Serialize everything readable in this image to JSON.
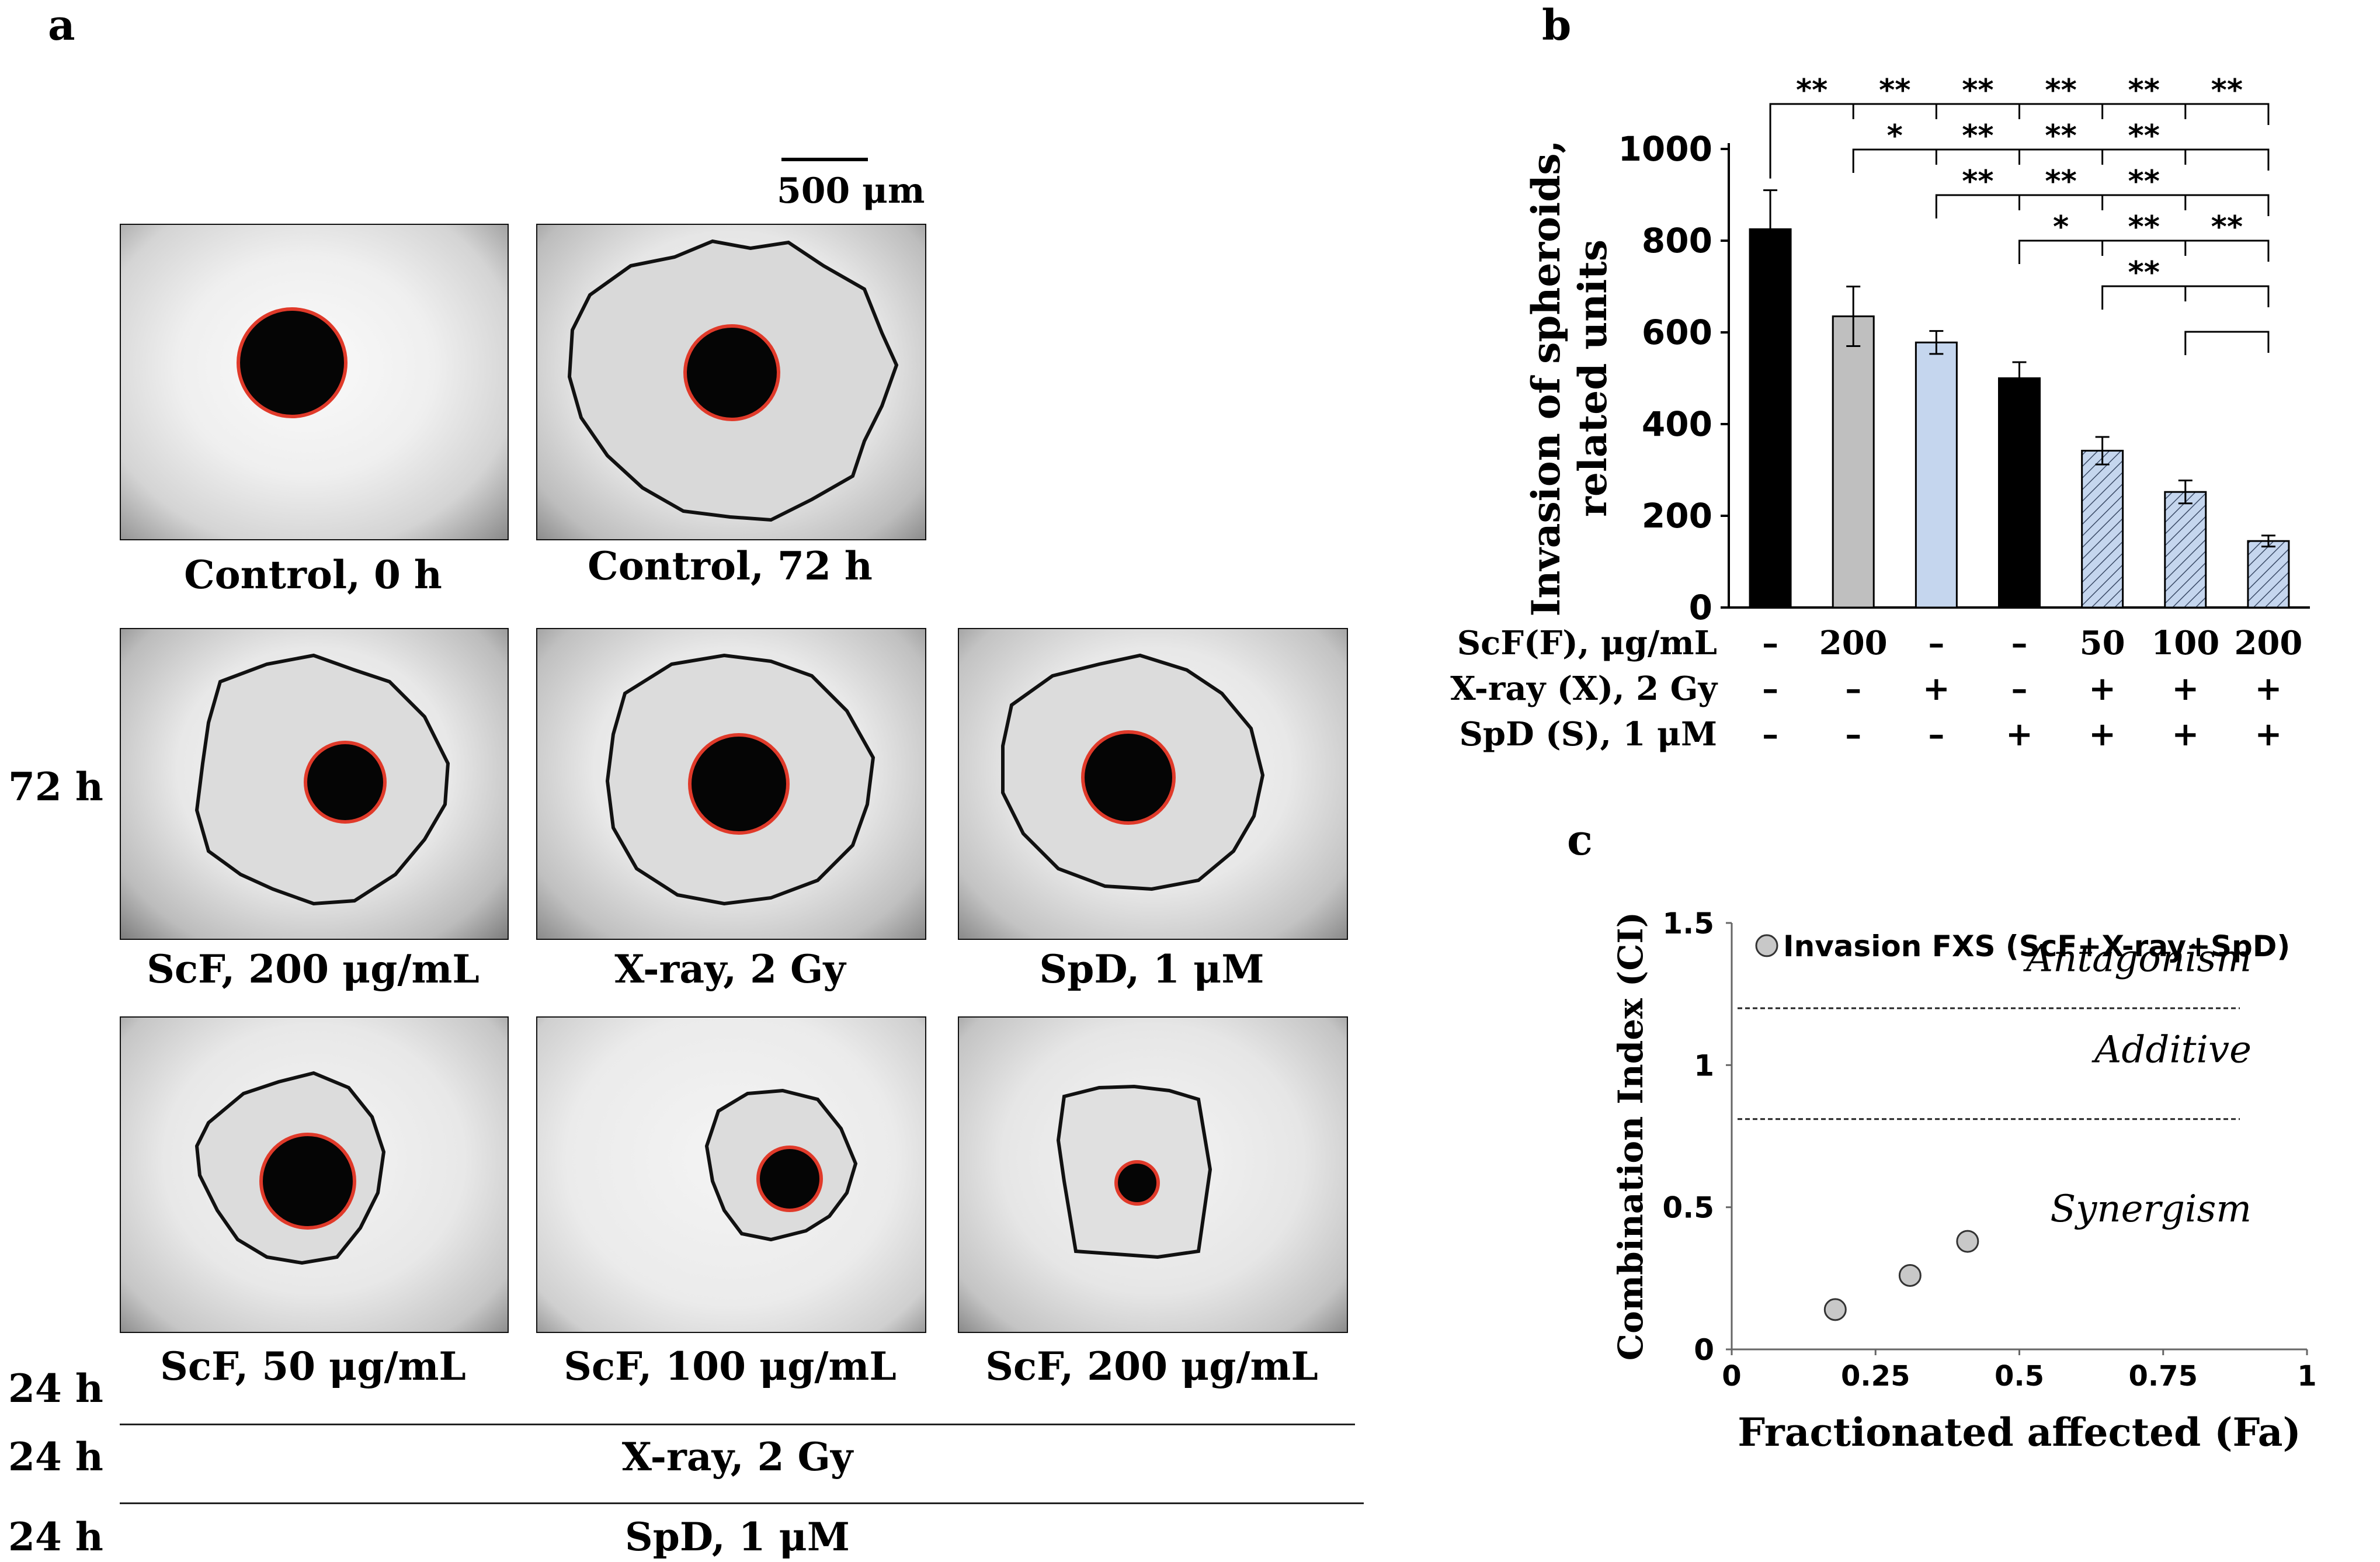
{
  "panels": {
    "a": "a",
    "b": "b",
    "c": "c"
  },
  "panel_a": {
    "scale_bar_label": "500 μm",
    "row_label_72h": "72 h",
    "images": [
      {
        "caption": "Control, 0 h"
      },
      {
        "caption": "Control, 72 h"
      },
      {
        "caption": "ScF, 200 μg/mL"
      },
      {
        "caption": "X-ray, 2 Gy"
      },
      {
        "caption": "SpD, 1 μM"
      },
      {
        "caption": "ScF, 50 μg/mL"
      },
      {
        "caption": "ScF, 100 μg/mL"
      },
      {
        "caption": "ScF, 200 μg/mL"
      }
    ],
    "timeline": [
      {
        "time": "24 h",
        "label": ""
      },
      {
        "time": "24 h",
        "label": "X-ray, 2 Gy"
      },
      {
        "time": "24 h",
        "label": "SpD, 1 μM"
      }
    ]
  },
  "chart_data": [
    {
      "panel": "b",
      "type": "bar",
      "ylabel_line1": "Invasion of spheroids,",
      "ylabel_line2": "related units",
      "ylim": [
        0,
        1000
      ],
      "yticks": [
        "0",
        "200",
        "400",
        "600",
        "800",
        "1000"
      ],
      "values": [
        825,
        635,
        578,
        500,
        342,
        252,
        145
      ],
      "errors": [
        85,
        65,
        25,
        35,
        30,
        25,
        12
      ],
      "bar_colors": [
        "#000000",
        "#bfbfbf",
        "#c5d6ee",
        "#000000",
        "#c5d6ee",
        "#c5d6ee",
        "#c5d6ee"
      ],
      "hatched": [
        false,
        false,
        false,
        false,
        true,
        true,
        true
      ],
      "treatment_rows": [
        {
          "label": "ScF(F), μg/mL",
          "values": [
            "–",
            "200",
            "–",
            "–",
            "50",
            "100",
            "200"
          ]
        },
        {
          "label": "X-ray (X), 2 Gy",
          "values": [
            "–",
            "–",
            "+",
            "–",
            "+",
            "+",
            "+"
          ]
        },
        {
          "label": "SpD (S), 1 μM",
          "values": [
            "–",
            "–",
            "–",
            "+",
            "+",
            "+",
            "+"
          ]
        }
      ],
      "significance_rows": [
        {
          "from": 1,
          "marks": [
            "**",
            "**",
            "**",
            "**",
            "**",
            "**"
          ]
        },
        {
          "from": 2,
          "marks": [
            "*",
            "**",
            "**",
            "**"
          ]
        },
        {
          "from": 3,
          "marks": [
            "**",
            "**",
            "**"
          ]
        },
        {
          "from": 4,
          "marks": [
            "*",
            "**",
            "**"
          ]
        },
        {
          "from": 5,
          "marks": [
            "**"
          ]
        },
        {
          "from": 6,
          "marks": []
        }
      ]
    },
    {
      "panel": "c",
      "type": "scatter",
      "xlabel": "Fractionated affected (Fa)",
      "ylabel": "Combination Index (CI)",
      "xlim": [
        0,
        1
      ],
      "ylim": [
        0,
        1.5
      ],
      "xticks": [
        "0",
        "0.25",
        "0.5",
        "0.75",
        "1"
      ],
      "yticks": [
        "0",
        "0.5",
        "1",
        "1.5"
      ],
      "legend": "Invasion FXS (ScF+X-ray+SpD)",
      "legend_position": "top-left",
      "points": [
        {
          "x": 0.18,
          "y": 0.14
        },
        {
          "x": 0.31,
          "y": 0.26
        },
        {
          "x": 0.41,
          "y": 0.38
        }
      ],
      "reference_lines": [
        1.2,
        0.81
      ],
      "region_labels": [
        "Antagonism",
        "Additive",
        "Synergism"
      ]
    }
  ]
}
